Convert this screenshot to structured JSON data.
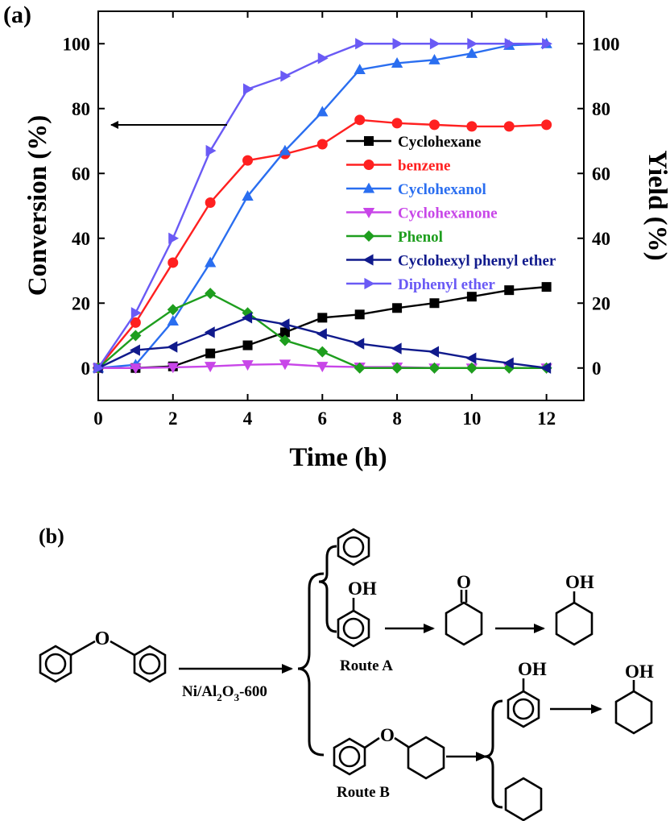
{
  "chart_data": {
    "type": "line",
    "panel_label": "(a)",
    "xlabel": "Time (h)",
    "ylabel": "Conversion (%)",
    "y2label": "Yield (%)",
    "xlim": [
      0,
      13
    ],
    "ylim": [
      -10,
      110
    ],
    "x_ticks": [
      0,
      2,
      4,
      6,
      8,
      10,
      12
    ],
    "y_ticks": [
      0,
      20,
      40,
      60,
      80,
      100
    ],
    "x": [
      0,
      1,
      2,
      3,
      4,
      5,
      6,
      7,
      8,
      9,
      10,
      11,
      12
    ],
    "legend_position": "center-right",
    "annotation": "arrow pointing to left axis (conversion)",
    "series": [
      {
        "name": "Cyclohexane",
        "color": "#000000",
        "marker": "square",
        "values": [
          0,
          0,
          0.5,
          4.5,
          7,
          11,
          15.5,
          16.5,
          18.5,
          20,
          22,
          24,
          25
        ]
      },
      {
        "name": "benzene",
        "color": "#ff2020",
        "marker": "circle",
        "values": [
          0,
          14,
          32.5,
          51,
          64,
          66,
          69,
          76.5,
          75.5,
          75,
          74.5,
          74.5,
          75
        ]
      },
      {
        "name": "Cyclohexanol",
        "color": "#2a6ef0",
        "marker": "triangle-up",
        "values": [
          0,
          1,
          14.5,
          32.5,
          53,
          67,
          79,
          92,
          94,
          95,
          97,
          99.5,
          100
        ]
      },
      {
        "name": "Cyclohexanone",
        "color": "#c846e8",
        "marker": "triangle-down",
        "values": [
          0,
          0,
          0.2,
          0.5,
          1,
          1.2,
          0.5,
          0.3,
          0.3,
          0,
          0,
          0,
          0
        ]
      },
      {
        "name": "Phenol",
        "color": "#1e9e1e",
        "marker": "diamond",
        "values": [
          0,
          10,
          18,
          23,
          17,
          8.5,
          5,
          0,
          0,
          0,
          0,
          0,
          0
        ]
      },
      {
        "name": "Cyclohexyl phenyl ether",
        "color": "#101a8c",
        "marker": "triangle-left",
        "values": [
          0,
          5.5,
          6.5,
          11,
          15.5,
          13.5,
          10.5,
          7.5,
          6,
          5,
          3,
          1.5,
          0
        ]
      },
      {
        "name": "Diphenyl ether",
        "color": "#6a5af5",
        "marker": "triangle-right",
        "values": [
          0,
          17,
          40,
          67,
          86,
          90,
          95.5,
          100,
          100,
          100,
          100,
          100,
          100
        ]
      }
    ]
  },
  "scheme": {
    "panel_label": "(b)",
    "catalyst_main": "Ni/Al",
    "catalyst_sub1": "2",
    "catalyst_mid": "O",
    "catalyst_sub2": "3",
    "catalyst_tail": "-600",
    "route_a": "Route A",
    "route_b": "Route B",
    "oxygen": "O",
    "oh_phenol_a": "OH",
    "ketone_o": "O",
    "oh_cyclohexanol_a": "OH",
    "oh_phenol_b": "OH",
    "oh_cyclohexanol_b": "OH"
  }
}
